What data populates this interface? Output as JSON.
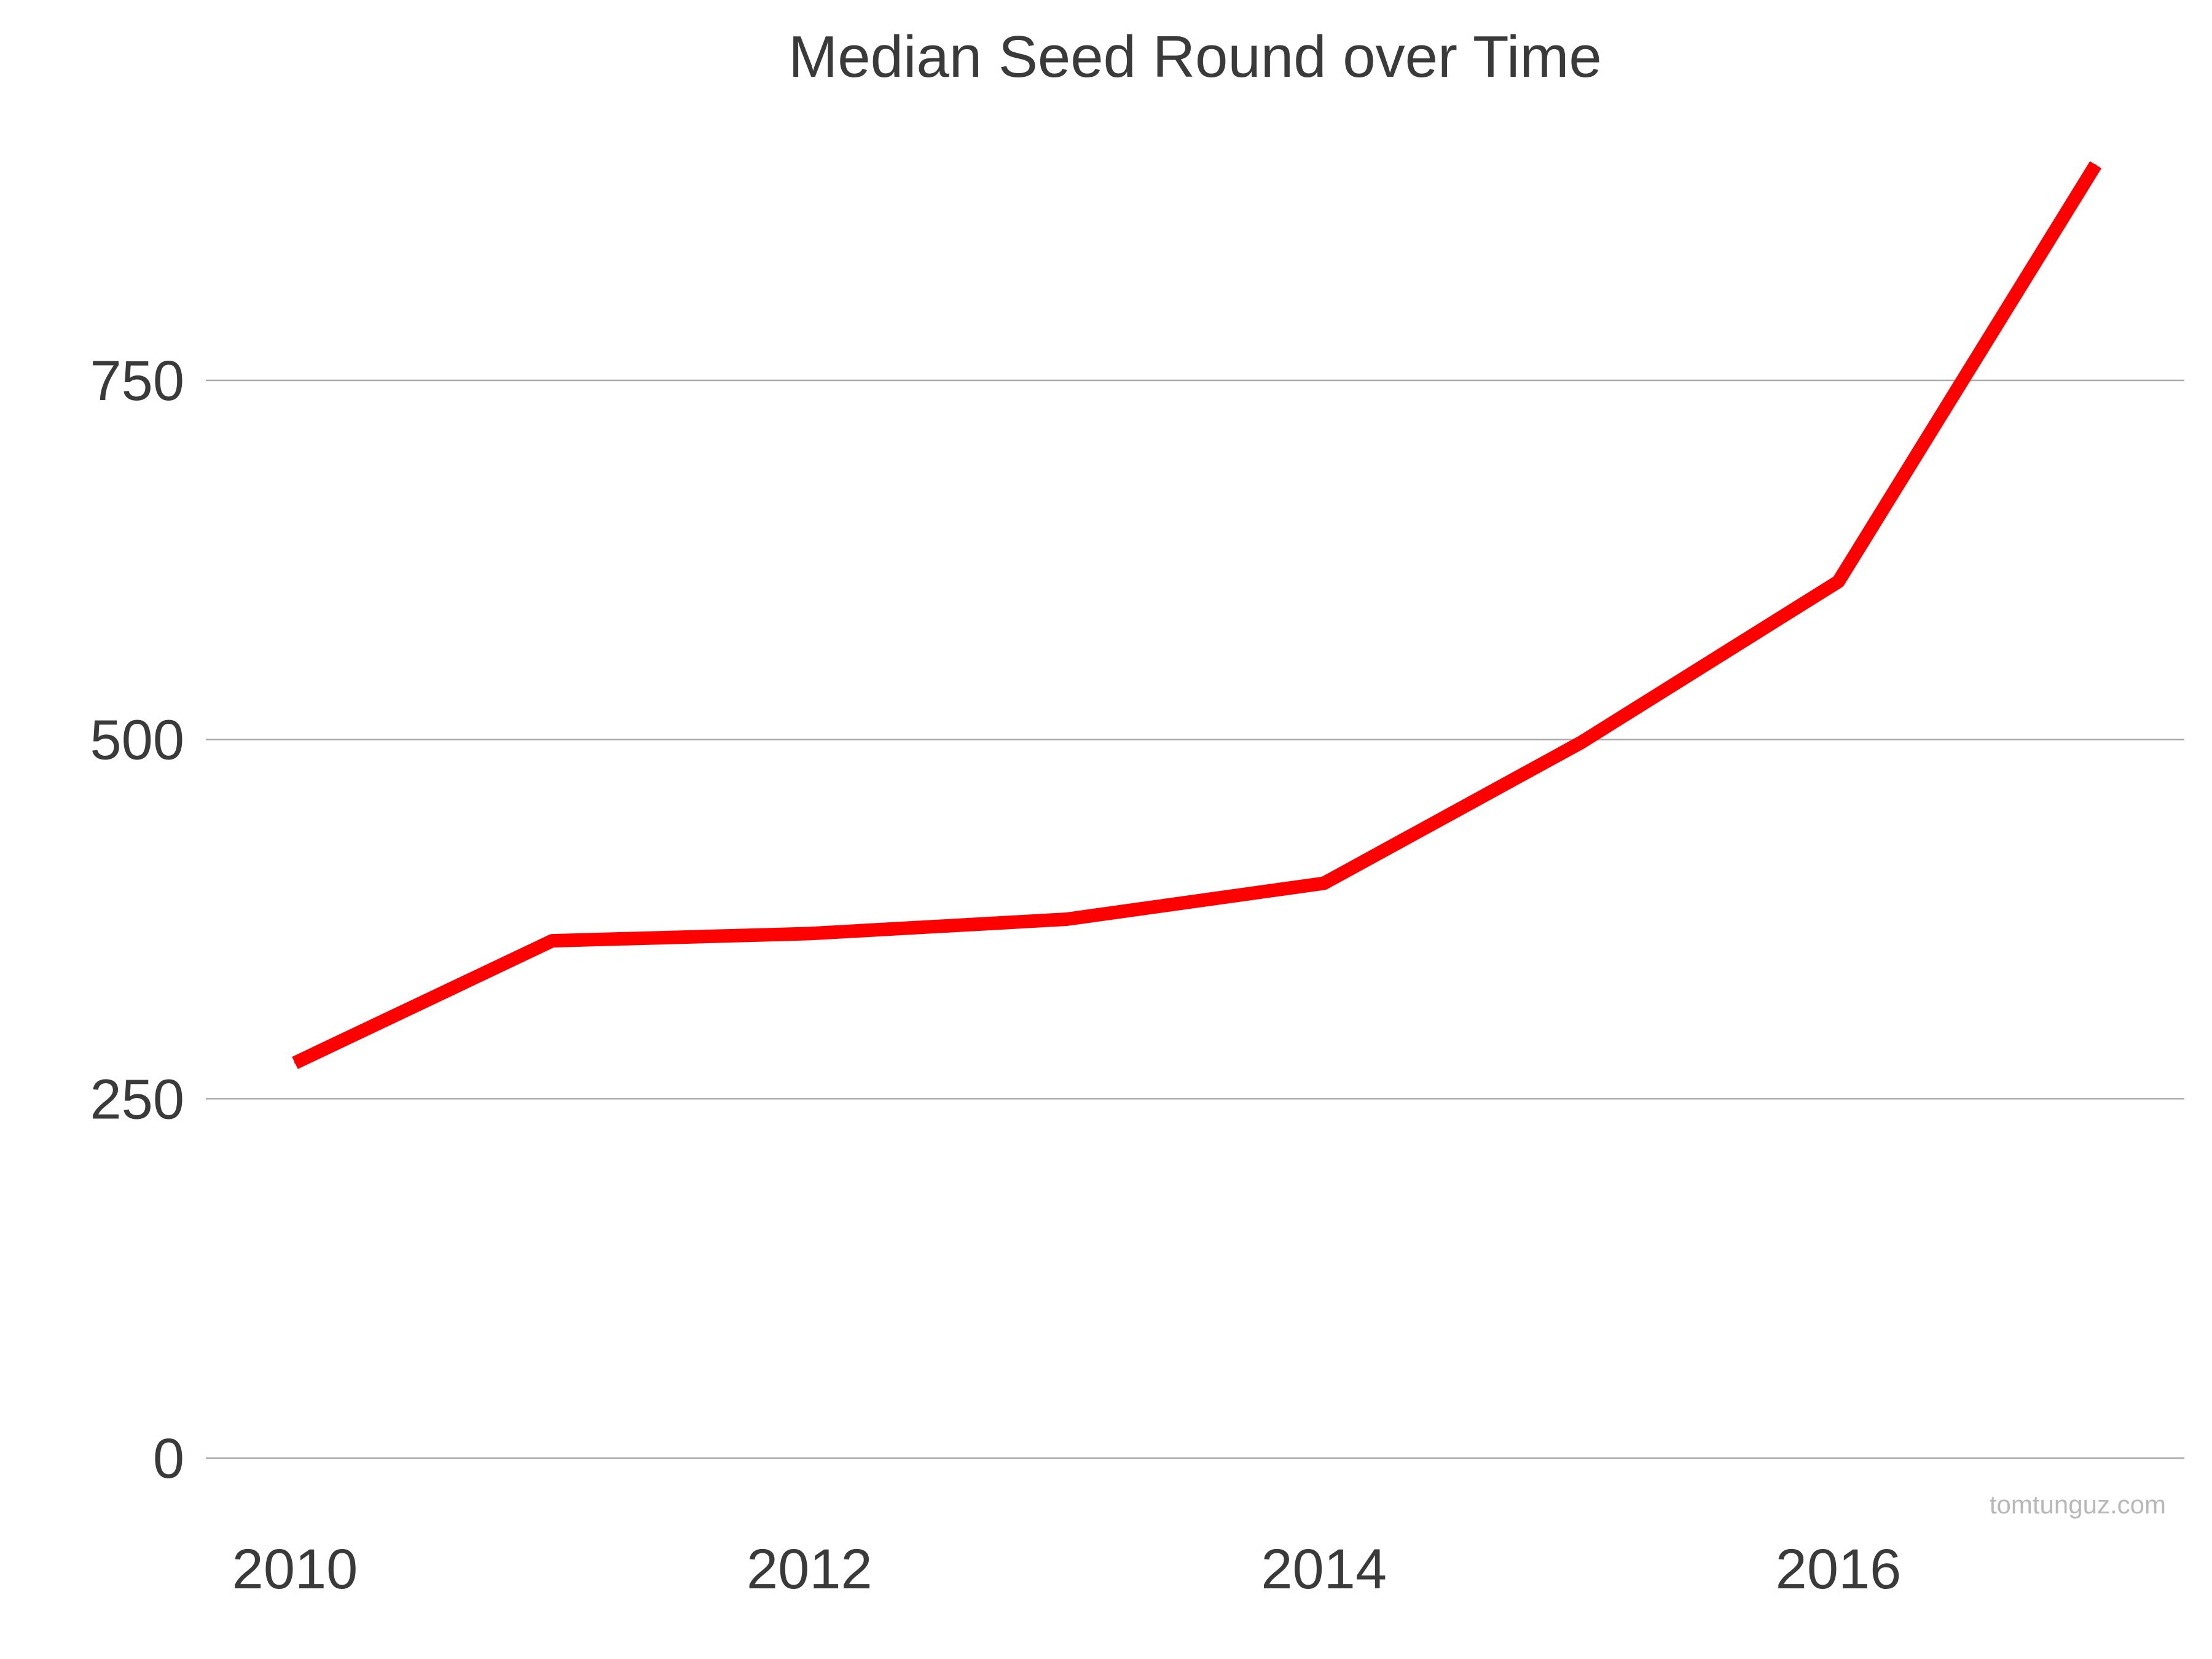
{
  "chart_data": {
    "type": "line",
    "title": "Median Seed Round over Time",
    "xlabel": "",
    "ylabel": "",
    "x": [
      2010,
      2011,
      2012,
      2013,
      2014,
      2015,
      2016,
      2017
    ],
    "series": [
      {
        "values": [
          275,
          360,
          365,
          375,
          400,
          498,
          610,
          900
        ],
        "color": "#ff0000"
      }
    ],
    "xticks": [
      2010,
      2012,
      2014,
      2016
    ],
    "xtick_labels": [
      "2010",
      "2012",
      "2014",
      "2016"
    ],
    "yticks": [
      0,
      250,
      500,
      750
    ],
    "ytick_labels": [
      "0",
      "250",
      "500",
      "750"
    ],
    "ylim": [
      0,
      900
    ],
    "xlim": [
      2010,
      2017
    ],
    "grid": true,
    "legend": "none"
  },
  "watermark": "tomtunguz.com",
  "colors": {
    "series": "#ff0000",
    "grid": "#a9a9a9",
    "text": "#3a3a3a",
    "watermark": "#b8b8b8",
    "background": "#ffffff"
  }
}
